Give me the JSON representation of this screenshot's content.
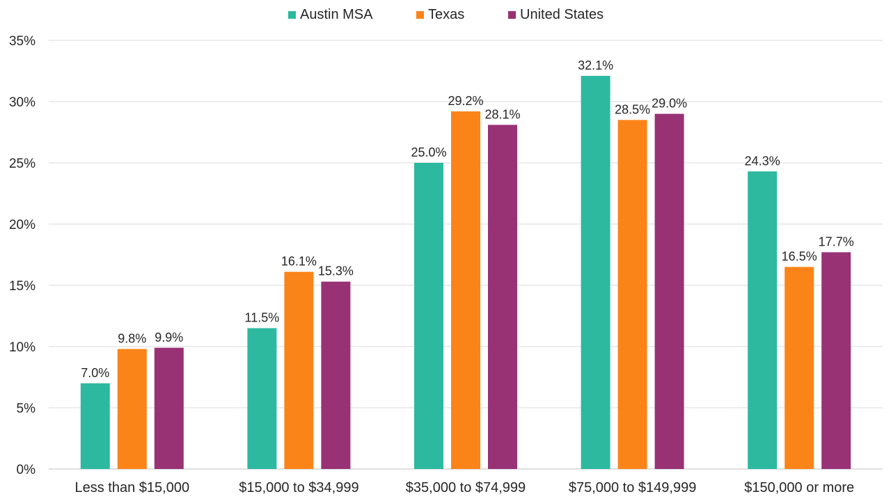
{
  "chart_data": {
    "type": "bar",
    "title": "",
    "xlabel": "",
    "ylabel": "",
    "ylim": [
      0,
      35
    ],
    "yticks": [
      0,
      5,
      10,
      15,
      20,
      25,
      30,
      35
    ],
    "ytick_labels": [
      "0%",
      "5%",
      "10%",
      "15%",
      "20%",
      "25%",
      "30%",
      "35%"
    ],
    "grid": true,
    "legend_position": "top",
    "categories": [
      "Less than $15,000",
      "$15,000 to $34,999",
      "$35,000 to $74,999",
      "$75,000 to $149,999",
      "$150,000 or more"
    ],
    "series": [
      {
        "name": "Austin MSA",
        "color": "#2db9a0",
        "values": [
          7.0,
          11.5,
          25.0,
          32.1,
          24.3
        ],
        "labels": [
          "7.0%",
          "11.5%",
          "25.0%",
          "32.1%",
          "24.3%"
        ]
      },
      {
        "name": "Texas",
        "color": "#fb8419",
        "values": [
          9.8,
          16.1,
          29.2,
          28.5,
          16.5
        ],
        "labels": [
          "9.8%",
          "16.1%",
          "29.2%",
          "28.5%",
          "16.5%"
        ]
      },
      {
        "name": "United States",
        "color": "#983275",
        "values": [
          9.9,
          15.3,
          28.1,
          29.0,
          17.7
        ],
        "labels": [
          "9.9%",
          "15.3%",
          "28.1%",
          "29.0%",
          "17.7%"
        ]
      }
    ]
  }
}
